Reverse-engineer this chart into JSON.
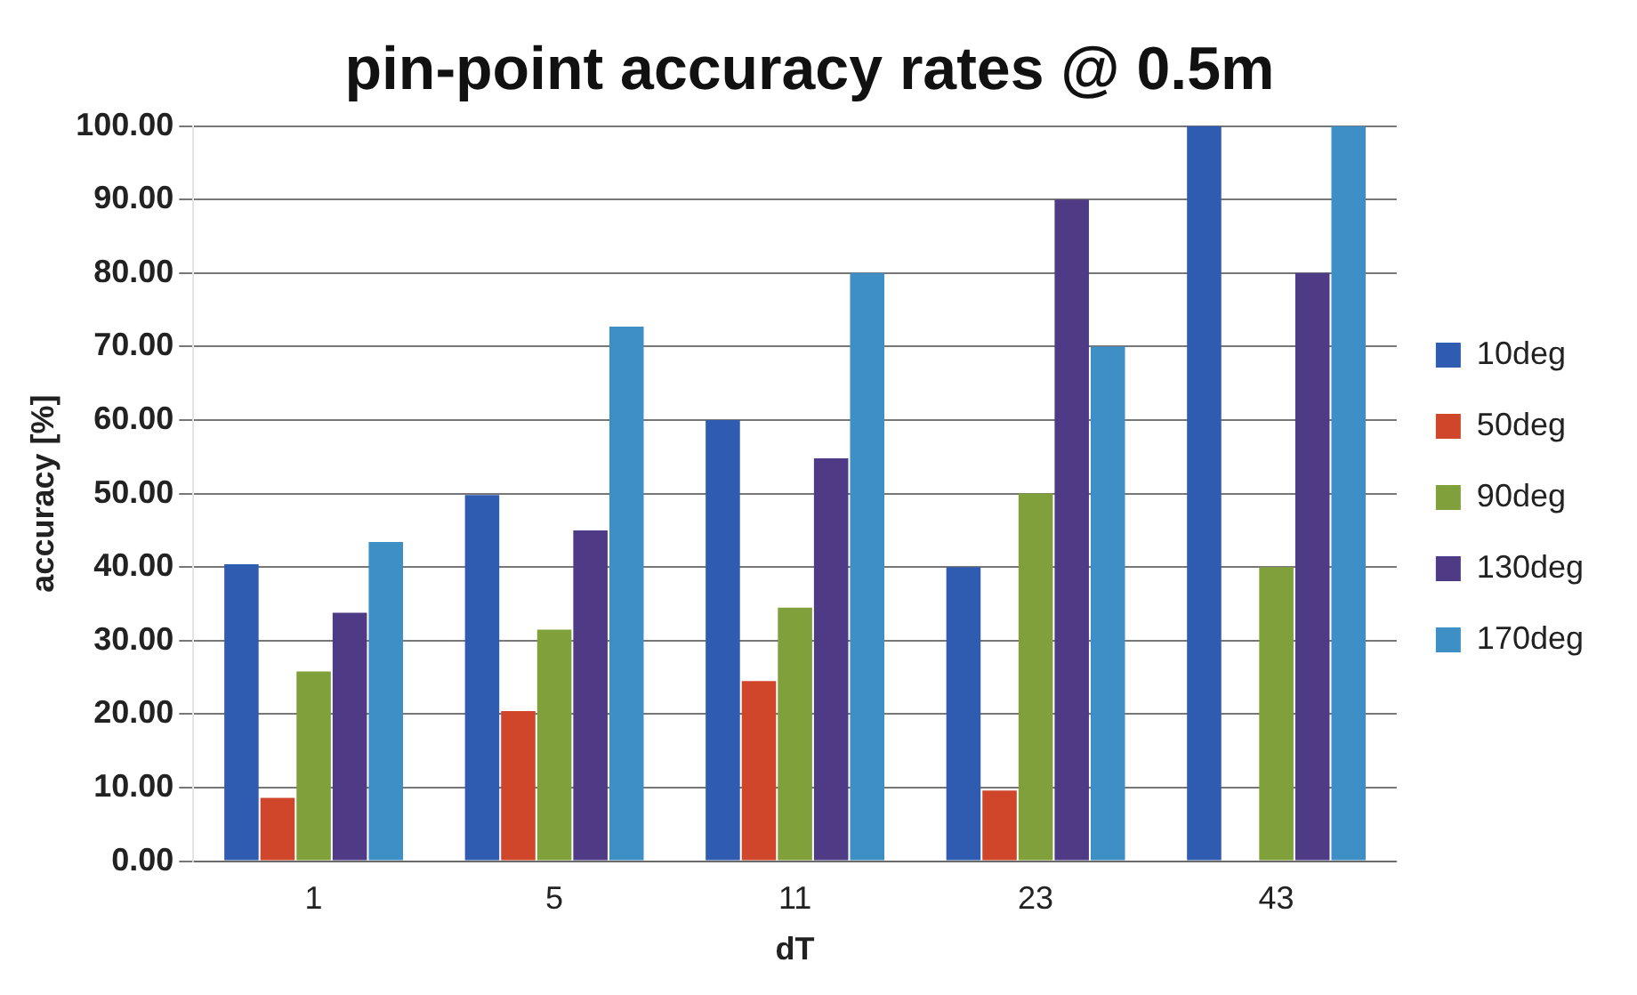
{
  "chart_data": {
    "type": "bar",
    "title": "pin-point accuracy rates @ 0.5m",
    "xlabel": "dT",
    "ylabel": "accuracy [%]",
    "categories": [
      "1",
      "5",
      "11",
      "23",
      "43"
    ],
    "series": [
      {
        "name": "10deg",
        "color": "#2f5cb0",
        "values": [
          40.4,
          49.8,
          60,
          40,
          100
        ]
      },
      {
        "name": "50deg",
        "color": "#d0462a",
        "values": [
          8.6,
          20.4,
          24.5,
          9.6,
          0
        ]
      },
      {
        "name": "90deg",
        "color": "#7fa03a",
        "values": [
          25.8,
          31.5,
          34.5,
          50,
          40
        ]
      },
      {
        "name": "130deg",
        "color": "#4f3a85",
        "values": [
          33.8,
          45,
          54.8,
          90,
          80
        ]
      },
      {
        "name": "170deg",
        "color": "#3d8fc6",
        "values": [
          43.4,
          72.7,
          80,
          70,
          100
        ]
      }
    ],
    "ylim": [
      0,
      100
    ],
    "yticks": [
      {
        "value": 0,
        "label": "0.00"
      },
      {
        "value": 10,
        "label": "10.00"
      },
      {
        "value": 20,
        "label": "20.00"
      },
      {
        "value": 30,
        "label": "30.00"
      },
      {
        "value": 40,
        "label": "40.00"
      },
      {
        "value": 50,
        "label": "50.00"
      },
      {
        "value": 60,
        "label": "60.00"
      },
      {
        "value": 70,
        "label": "70.00"
      },
      {
        "value": 80,
        "label": "80.00"
      },
      {
        "value": 90,
        "label": "90.00"
      },
      {
        "value": 100,
        "label": "100.00"
      }
    ],
    "grid": "y",
    "legend": "right"
  }
}
